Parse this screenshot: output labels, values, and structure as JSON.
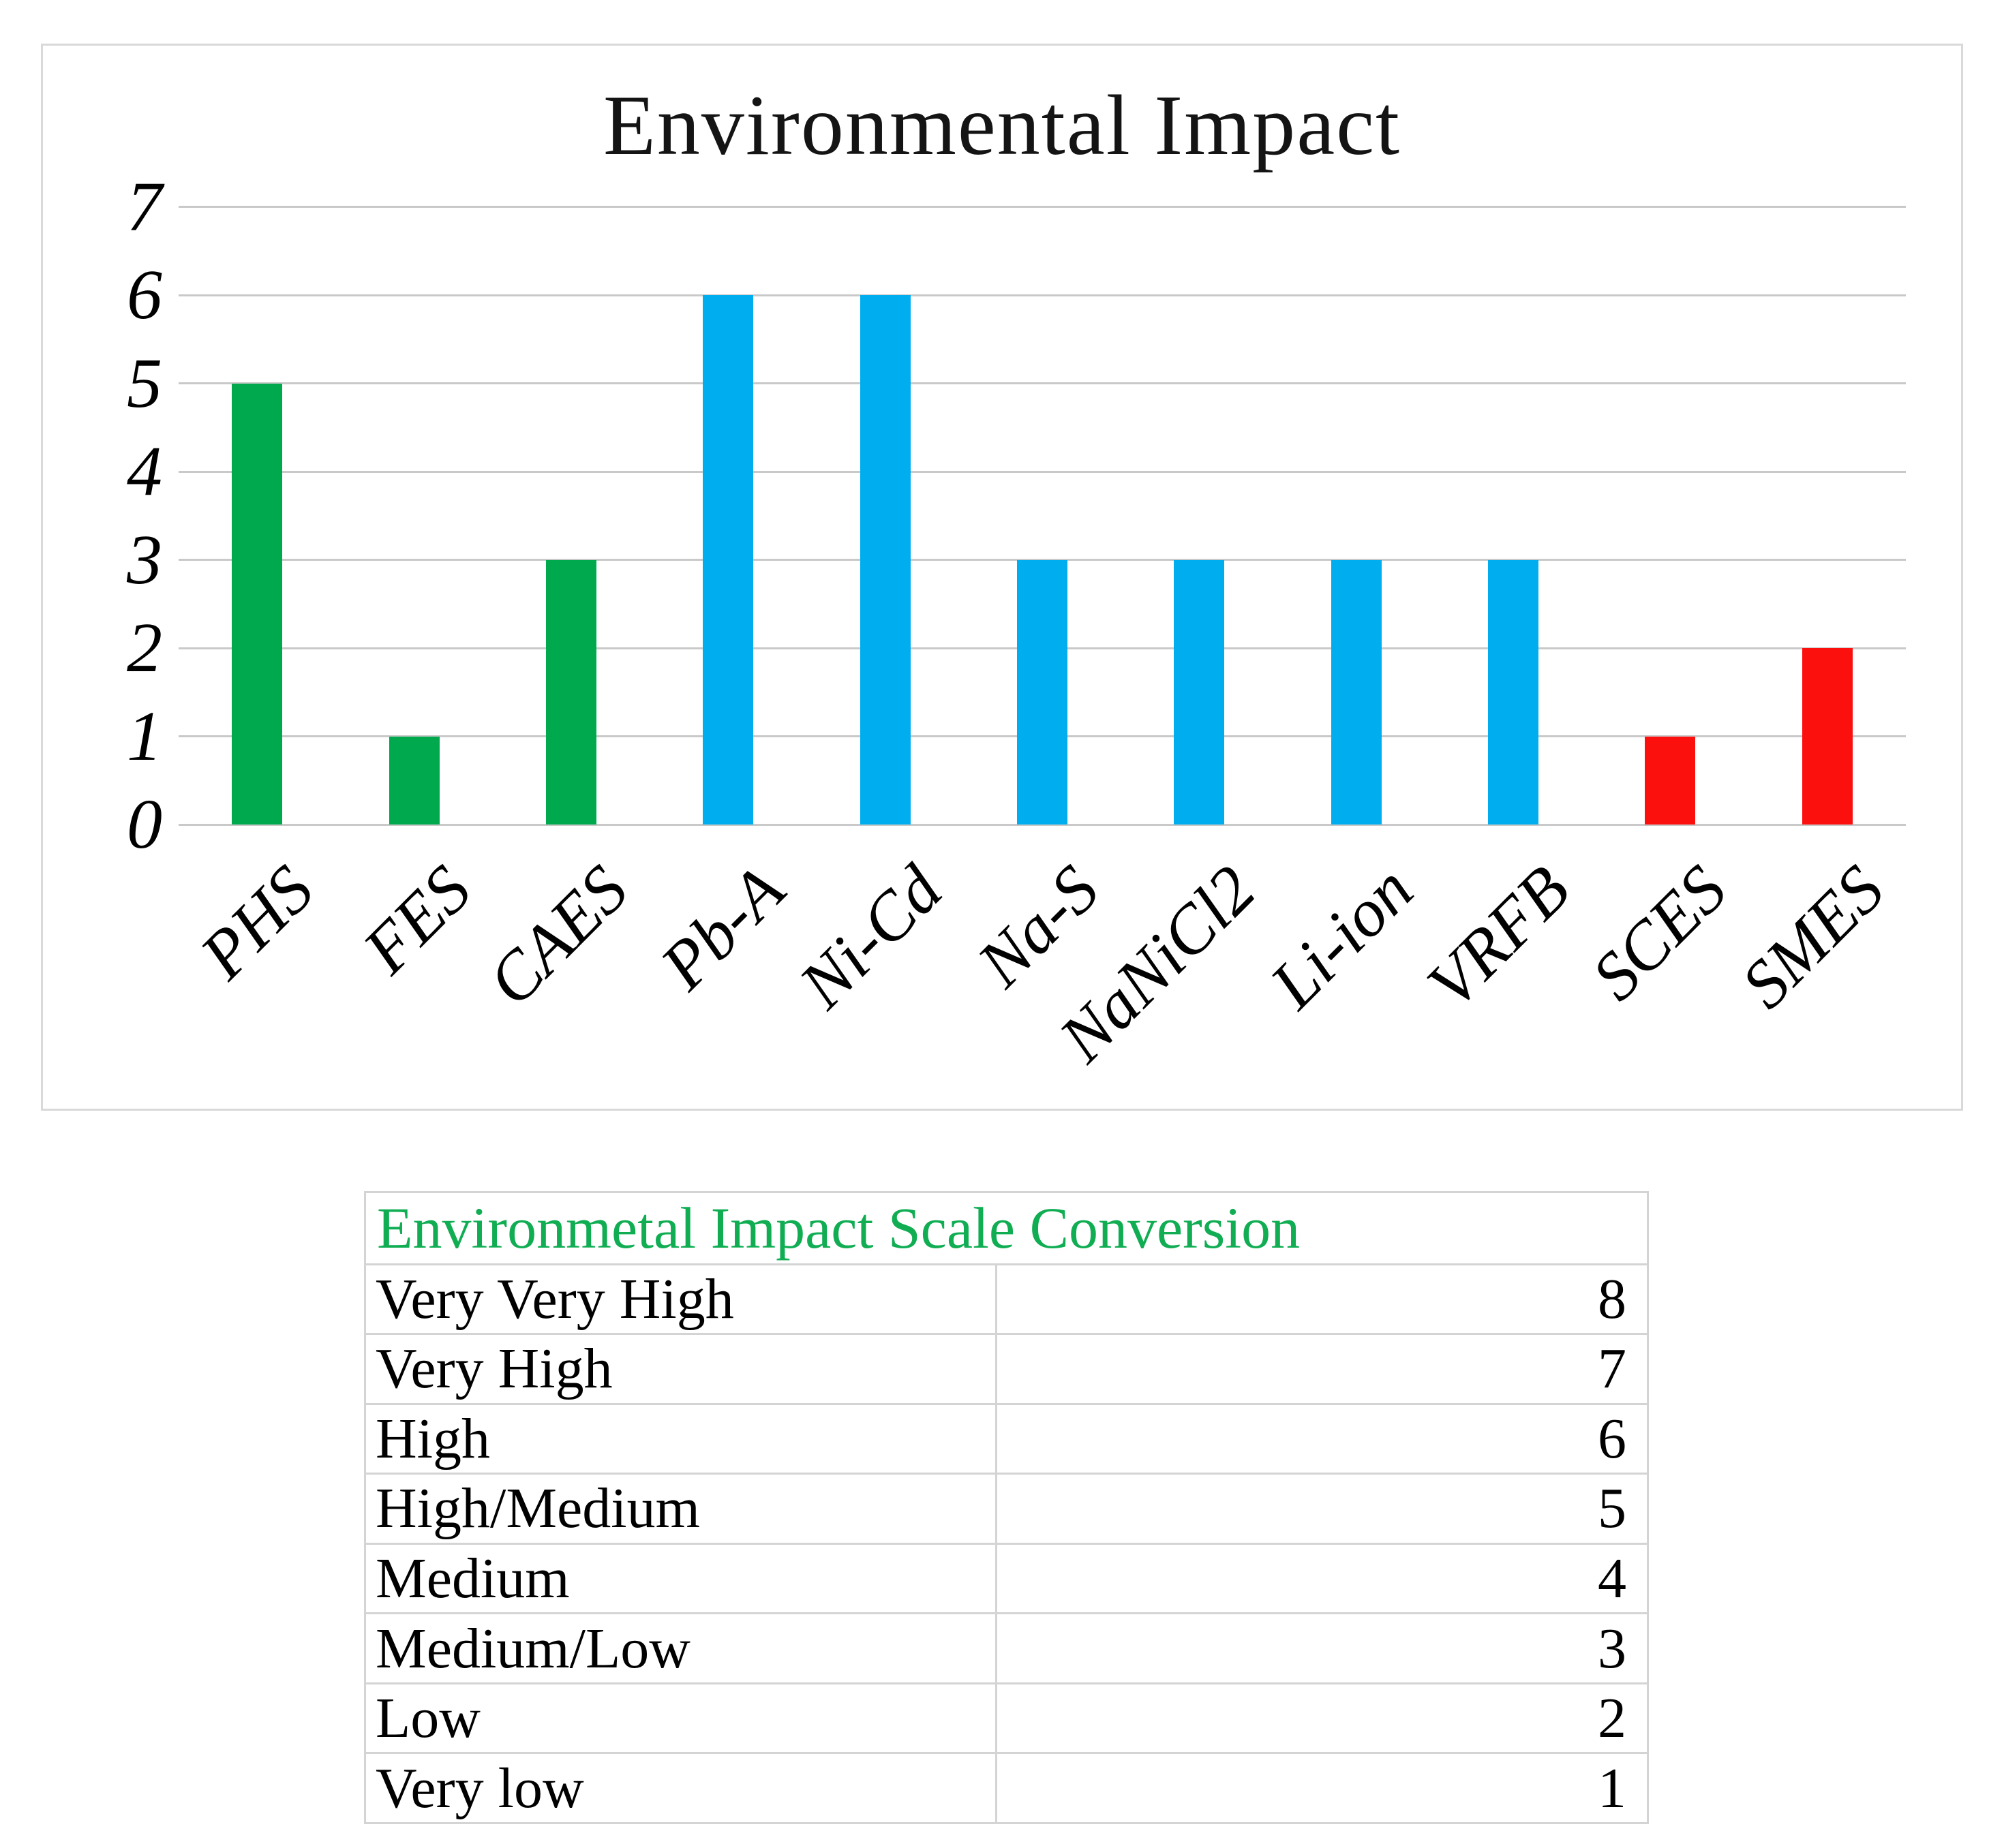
{
  "chart_data": {
    "type": "bar",
    "title": "Environmental Impact",
    "categories": [
      "PHS",
      "FES",
      "CAES",
      "Pb-A",
      "Ni-Cd",
      "Na-S",
      "NaNiCl2",
      "Li-ion",
      "VRFB",
      "SCES",
      "SMES"
    ],
    "values": [
      5,
      1,
      3,
      6,
      6,
      3,
      3,
      3,
      3,
      1,
      2
    ],
    "bar_colors": [
      "#00a94e",
      "#00a94e",
      "#00a94e",
      "#00aeef",
      "#00aeef",
      "#00aeef",
      "#00aeef",
      "#00aeef",
      "#00aeef",
      "#fb100d",
      "#fb100d"
    ],
    "color_groups": {
      "mechanical_green": "#00a94e",
      "battery_blue": "#00aeef",
      "electrical_red": "#fb100d"
    },
    "xlabel": "",
    "ylabel": "",
    "ylim": [
      0,
      7
    ],
    "yticks": [
      0,
      1,
      2,
      3,
      4,
      5,
      6,
      7
    ],
    "grid": true,
    "legend": false,
    "gridline_color": "#c9c9c9",
    "border_color": "#d9d9d9"
  },
  "table": {
    "title": "Environmetal Impact Scale Conversion",
    "title_color": "#10ad53",
    "border_color": "#d4d4d4",
    "rows": [
      {
        "label": "Very Very High",
        "value": "8"
      },
      {
        "label": "Very High",
        "value": "7"
      },
      {
        "label": "High",
        "value": "6"
      },
      {
        "label": "High/Medium",
        "value": "5"
      },
      {
        "label": "Medium",
        "value": "4"
      },
      {
        "label": "Medium/Low",
        "value": "3"
      },
      {
        "label": "Low",
        "value": "2"
      },
      {
        "label": "Very low",
        "value": "1"
      }
    ]
  }
}
